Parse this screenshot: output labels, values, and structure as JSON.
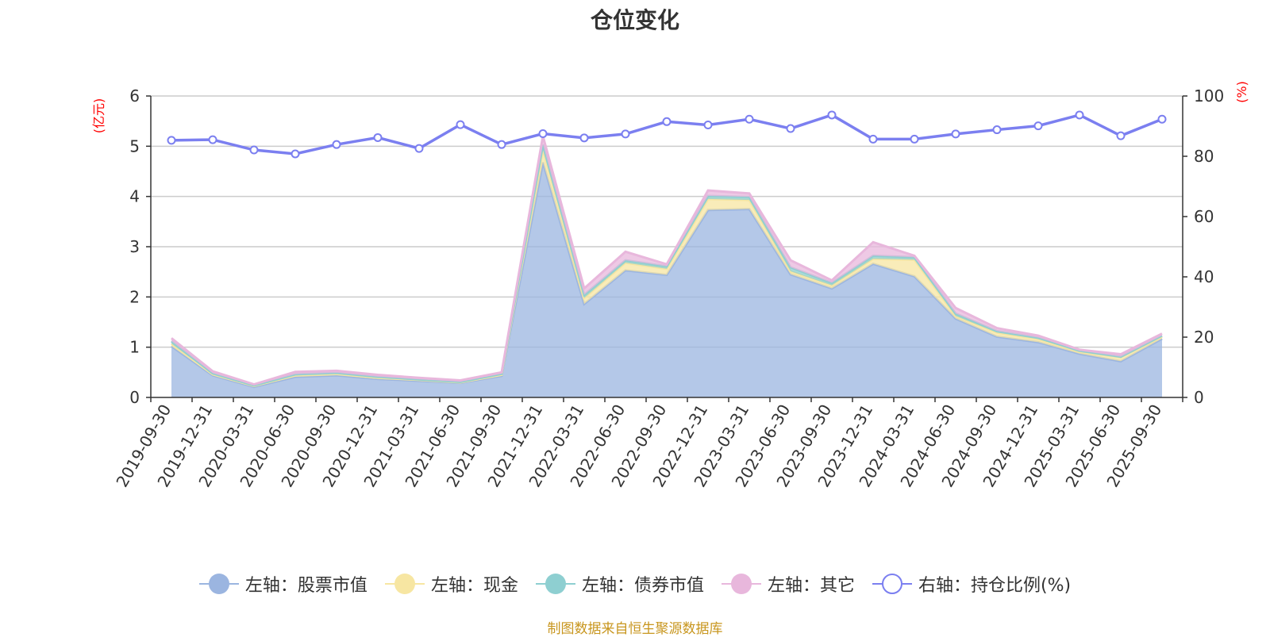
{
  "chart_data": {
    "type": "area",
    "title": "仓位变化",
    "x": [
      "2019-09-30",
      "2019-12-31",
      "2020-03-31",
      "2020-06-30",
      "2020-09-30",
      "2020-12-31",
      "2021-03-31",
      "2021-06-30",
      "2021-09-30",
      "2021-12-31",
      "2022-03-31",
      "2022-06-30",
      "2022-09-30",
      "2022-12-31",
      "2023-03-31",
      "2023-06-30",
      "2023-09-30",
      "2023-12-31",
      "2024-03-31",
      "2024-06-30",
      "2024-09-30",
      "2024-12-31",
      "2025-03-31",
      "2025-06-30",
      "2025-09-30"
    ],
    "left_axis": {
      "unit_label": "(亿元)",
      "ylim": [
        0,
        6
      ],
      "ticks": [
        "0",
        "1",
        "2",
        "3",
        "4",
        "5",
        "6"
      ]
    },
    "right_axis": {
      "unit_label": "(%)",
      "ylim": [
        0,
        100
      ],
      "ticks": [
        "0",
        "20",
        "40",
        "60",
        "80",
        "100"
      ]
    },
    "series": [
      {
        "name": "左轴：股票市值",
        "axis": "left",
        "stacked": true,
        "color": "#9bb5e0",
        "values": [
          1.02,
          0.44,
          0.21,
          0.41,
          0.44,
          0.37,
          0.33,
          0.29,
          0.43,
          4.68,
          1.86,
          2.53,
          2.44,
          3.73,
          3.75,
          2.45,
          2.17,
          2.66,
          2.41,
          1.57,
          1.21,
          1.1,
          0.87,
          0.72,
          1.17
        ]
      },
      {
        "name": "左轴：现金",
        "axis": "left",
        "stacked": true,
        "color": "#f7e6a2",
        "values": [
          0.05,
          0.02,
          0.02,
          0.03,
          0.03,
          0.02,
          0.02,
          0.01,
          0.02,
          0.25,
          0.12,
          0.15,
          0.12,
          0.22,
          0.18,
          0.06,
          0.06,
          0.1,
          0.33,
          0.05,
          0.08,
          0.06,
          0.04,
          0.08,
          0.04
        ]
      },
      {
        "name": "左轴：债券市值",
        "axis": "left",
        "stacked": true,
        "color": "#8ecfd1",
        "values": [
          0.05,
          0.02,
          0.01,
          0.02,
          0.02,
          0.02,
          0.01,
          0.01,
          0.02,
          0.1,
          0.06,
          0.05,
          0.05,
          0.06,
          0.06,
          0.08,
          0.05,
          0.06,
          0.05,
          0.05,
          0.03,
          0.03,
          0.02,
          0.01,
          0.02
        ]
      },
      {
        "name": "左轴：其它",
        "axis": "left",
        "stacked": true,
        "color": "#e8b7dc",
        "values": [
          0.06,
          0.04,
          0.02,
          0.05,
          0.04,
          0.04,
          0.03,
          0.03,
          0.03,
          0.17,
          0.13,
          0.17,
          0.04,
          0.11,
          0.07,
          0.14,
          0.05,
          0.27,
          0.03,
          0.11,
          0.06,
          0.04,
          0.02,
          0.05,
          0.04
        ]
      },
      {
        "name": "右轴：持仓比例(%)",
        "axis": "right",
        "type": "line",
        "color": "#7b7ff0",
        "values": [
          85.3,
          85.5,
          82.1,
          80.8,
          83.9,
          86.2,
          82.6,
          90.5,
          83.9,
          87.5,
          86.1,
          87.4,
          91.5,
          90.4,
          92.3,
          89.2,
          93.7,
          85.7,
          85.7,
          87.4,
          88.8,
          90.1,
          93.7,
          86.8,
          92.3
        ]
      }
    ],
    "legend_position": "bottom",
    "grid": true
  },
  "source": "制图数据来自恒生聚源数据库"
}
